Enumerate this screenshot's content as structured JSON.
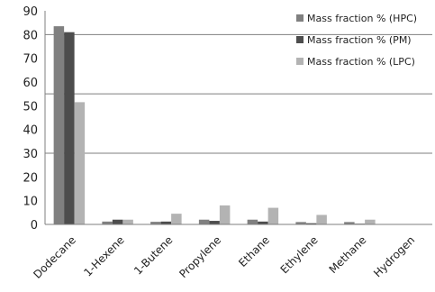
{
  "chart_data": {
    "type": "bar",
    "title": "",
    "xlabel": "",
    "ylabel": "",
    "ylim": [
      0,
      90
    ],
    "yticks": [
      0,
      10,
      20,
      30,
      40,
      50,
      60,
      70,
      80,
      90
    ],
    "gridlines": [
      30,
      55,
      80
    ],
    "categories": [
      "Dodecane",
      "1-Hexene",
      "1-Butene",
      "Propylene",
      "Ethane",
      "Ethylene",
      "Methane",
      "Hydrogen"
    ],
    "legend_position": "top-right",
    "series": [
      {
        "name": "Mass fraction % (HPC)",
        "color": "#808080",
        "values": [
          83.5,
          1.2,
          1.1,
          2.0,
          2.0,
          1.0,
          1.0,
          0
        ]
      },
      {
        "name": "Mass fraction % (PM)",
        "color": "#4d4d4d",
        "values": [
          81.0,
          2.0,
          1.2,
          1.5,
          1.2,
          0.5,
          0.3,
          0
        ]
      },
      {
        "name": "Mass fraction % (LPC)",
        "color": "#b3b3b3",
        "values": [
          51.5,
          2.0,
          4.5,
          8.0,
          7.0,
          4.0,
          2.0,
          0
        ]
      }
    ]
  }
}
